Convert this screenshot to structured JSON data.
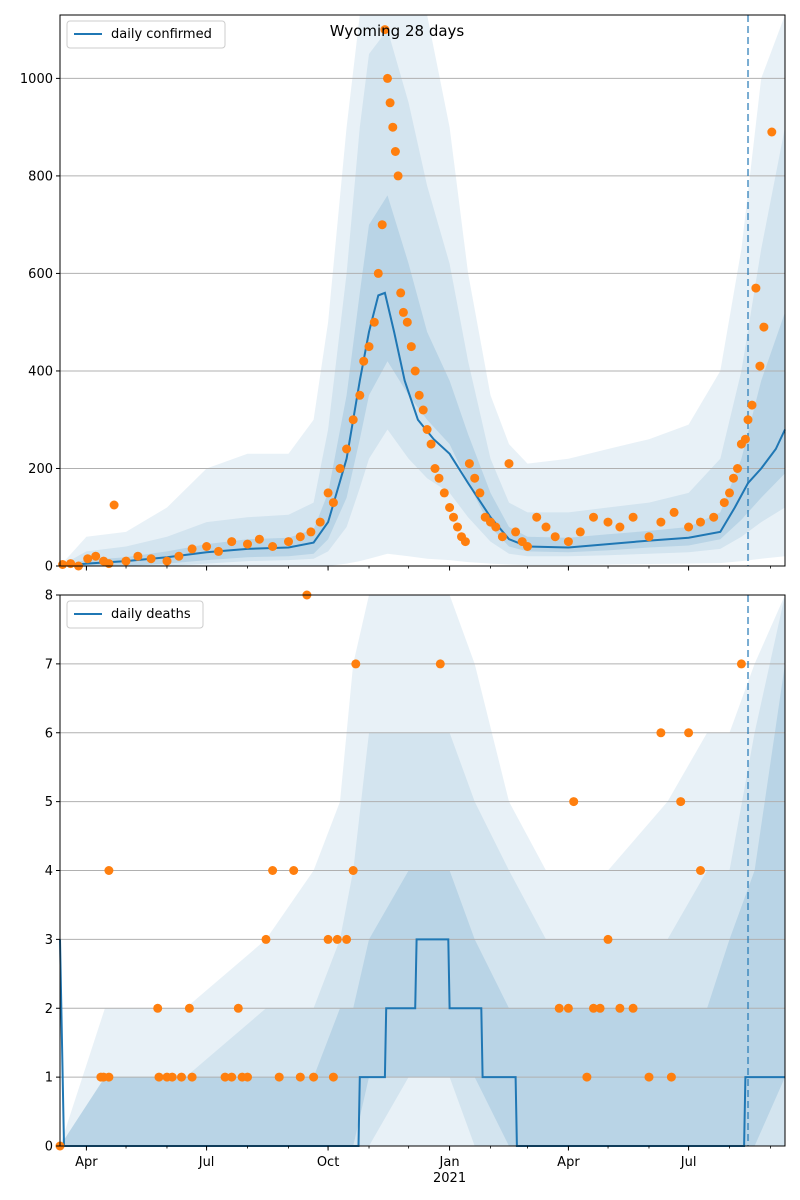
{
  "title": "Wyoming 28 days",
  "colors": {
    "line": "#1f77b4",
    "points": "#ff7f0e",
    "band": "#1f77b4",
    "grid": "#b0b0b0",
    "vline": "#1f77b4"
  },
  "x_axis": {
    "start": "2020-03-12",
    "end": "2021-09-12",
    "ticks": [
      {
        "date": "2020-04-01",
        "label": "Apr"
      },
      {
        "date": "2020-07-01",
        "label": "Jul"
      },
      {
        "date": "2020-10-01",
        "label": "Oct"
      },
      {
        "date": "2021-01-01",
        "label": "Jan"
      },
      {
        "date": "2021-04-01",
        "label": "Apr"
      },
      {
        "date": "2021-07-01",
        "label": "Jul"
      }
    ],
    "year_label": {
      "date": "2021-01-01",
      "label": "2021"
    },
    "forecast_date": "2021-08-15"
  },
  "chart_data": [
    {
      "type": "line",
      "legend": "daily confirmed",
      "legend_position": "top-left",
      "grid": true,
      "ylim": [
        0,
        1130
      ],
      "yticks": [
        0,
        200,
        400,
        600,
        800,
        1000
      ],
      "line": {
        "name": "daily confirmed",
        "x": [
          "2020-03-12",
          "2020-04-01",
          "2020-05-01",
          "2020-06-01",
          "2020-07-01",
          "2020-08-01",
          "2020-09-01",
          "2020-09-20",
          "2020-10-01",
          "2020-10-15",
          "2020-10-25",
          "2020-11-01",
          "2020-11-08",
          "2020-11-13",
          "2020-11-20",
          "2020-11-28",
          "2020-12-08",
          "2020-12-20",
          "2021-01-01",
          "2021-01-15",
          "2021-02-01",
          "2021-02-15",
          "2021-03-01",
          "2021-04-01",
          "2021-05-01",
          "2021-06-01",
          "2021-07-01",
          "2021-07-25",
          "2021-08-05",
          "2021-08-15",
          "2021-08-25",
          "2021-09-05",
          "2021-09-12"
        ],
        "y": [
          0,
          5,
          10,
          18,
          28,
          35,
          38,
          48,
          90,
          220,
          380,
          480,
          555,
          560,
          480,
          380,
          300,
          260,
          230,
          170,
          100,
          55,
          40,
          38,
          45,
          52,
          58,
          70,
          120,
          170,
          200,
          240,
          280
        ]
      },
      "bands": {
        "x": [
          "2020-03-12",
          "2020-04-01",
          "2020-05-01",
          "2020-06-01",
          "2020-07-01",
          "2020-08-01",
          "2020-09-01",
          "2020-09-20",
          "2020-10-01",
          "2020-10-15",
          "2020-10-25",
          "2020-11-01",
          "2020-11-15",
          "2020-12-01",
          "2020-12-15",
          "2021-01-01",
          "2021-01-15",
          "2021-02-01",
          "2021-02-15",
          "2021-03-01",
          "2021-04-01",
          "2021-05-01",
          "2021-06-01",
          "2021-07-01",
          "2021-07-25",
          "2021-08-10",
          "2021-08-25",
          "2021-09-12"
        ],
        "outer_low": [
          0,
          0,
          0,
          0,
          0,
          0,
          0,
          0,
          0,
          5,
          10,
          15,
          25,
          20,
          15,
          12,
          8,
          5,
          3,
          2,
          2,
          3,
          4,
          5,
          6,
          10,
          15,
          20
        ],
        "outer_high": [
          0,
          60,
          70,
          120,
          200,
          230,
          230,
          300,
          500,
          900,
          1130,
          1130,
          1130,
          1130,
          1130,
          900,
          600,
          350,
          250,
          210,
          220,
          240,
          260,
          290,
          400,
          650,
          1000,
          1130
        ],
        "mid_low": [
          0,
          0,
          0,
          0,
          5,
          10,
          12,
          15,
          30,
          80,
          160,
          220,
          280,
          220,
          180,
          150,
          100,
          50,
          25,
          20,
          20,
          22,
          25,
          28,
          35,
          60,
          90,
          120
        ],
        "mid_high": [
          0,
          30,
          40,
          60,
          90,
          100,
          105,
          130,
          280,
          600,
          900,
          1050,
          1100,
          950,
          780,
          620,
          420,
          220,
          130,
          110,
          110,
          120,
          130,
          150,
          220,
          400,
          650,
          900
        ],
        "inner_low": [
          0,
          0,
          0,
          5,
          12,
          18,
          20,
          25,
          55,
          140,
          260,
          350,
          420,
          350,
          300,
          250,
          170,
          80,
          40,
          30,
          28,
          32,
          38,
          42,
          55,
          95,
          140,
          190
        ],
        "inner_high": [
          0,
          12,
          18,
          30,
          45,
          55,
          58,
          75,
          150,
          350,
          560,
          700,
          760,
          620,
          480,
          380,
          270,
          150,
          80,
          60,
          58,
          65,
          72,
          80,
          110,
          220,
          380,
          520
        ]
      },
      "points": {
        "x": [
          "2020-03-14",
          "2020-03-20",
          "2020-03-26",
          "2020-04-02",
          "2020-04-08",
          "2020-04-14",
          "2020-04-18",
          "2020-04-22",
          "2020-05-01",
          "2020-05-10",
          "2020-05-20",
          "2020-06-01",
          "2020-06-10",
          "2020-06-20",
          "2020-07-01",
          "2020-07-10",
          "2020-07-20",
          "2020-08-01",
          "2020-08-10",
          "2020-08-20",
          "2020-09-01",
          "2020-09-10",
          "2020-09-18",
          "2020-09-25",
          "2020-10-01",
          "2020-10-05",
          "2020-10-10",
          "2020-10-15",
          "2020-10-20",
          "2020-10-25",
          "2020-10-28",
          "2020-11-01",
          "2020-11-05",
          "2020-11-08",
          "2020-11-11",
          "2020-11-13",
          "2020-11-15",
          "2020-11-17",
          "2020-11-19",
          "2020-11-21",
          "2020-11-23",
          "2020-11-25",
          "2020-11-27",
          "2020-11-30",
          "2020-12-03",
          "2020-12-06",
          "2020-12-09",
          "2020-12-12",
          "2020-12-15",
          "2020-12-18",
          "2020-12-21",
          "2020-12-24",
          "2020-12-28",
          "2021-01-01",
          "2021-01-04",
          "2021-01-07",
          "2021-01-10",
          "2021-01-13",
          "2021-01-16",
          "2021-01-20",
          "2021-01-24",
          "2021-01-28",
          "2021-02-01",
          "2021-02-05",
          "2021-02-10",
          "2021-02-15",
          "2021-02-20",
          "2021-02-25",
          "2021-03-01",
          "2021-03-08",
          "2021-03-15",
          "2021-03-22",
          "2021-04-01",
          "2021-04-10",
          "2021-04-20",
          "2021-05-01",
          "2021-05-10",
          "2021-05-20",
          "2021-06-01",
          "2021-06-10",
          "2021-06-20",
          "2021-07-01",
          "2021-07-10",
          "2021-07-20",
          "2021-07-28",
          "2021-08-01",
          "2021-08-04",
          "2021-08-07",
          "2021-08-10",
          "2021-08-13",
          "2021-08-15",
          "2021-08-18",
          "2021-08-21",
          "2021-08-24",
          "2021-08-27",
          "2021-09-02"
        ],
        "y": [
          3,
          5,
          0,
          15,
          20,
          10,
          5,
          125,
          10,
          20,
          15,
          10,
          20,
          35,
          40,
          30,
          50,
          45,
          55,
          40,
          50,
          60,
          70,
          90,
          150,
          130,
          200,
          240,
          300,
          350,
          420,
          450,
          500,
          600,
          700,
          1100,
          1000,
          950,
          900,
          850,
          800,
          560,
          520,
          500,
          450,
          400,
          350,
          320,
          280,
          250,
          200,
          180,
          150,
          120,
          100,
          80,
          60,
          50,
          210,
          180,
          150,
          100,
          90,
          80,
          60,
          210,
          70,
          50,
          40,
          100,
          80,
          60,
          50,
          70,
          100,
          90,
          80,
          100,
          60,
          90,
          110,
          80,
          90,
          100,
          130,
          150,
          180,
          200,
          250,
          260,
          300,
          330,
          570,
          410,
          490,
          890
        ]
      }
    },
    {
      "type": "line",
      "legend": "daily deaths",
      "legend_position": "top-left",
      "grid": true,
      "ylim": [
        0,
        8
      ],
      "yticks": [
        0,
        1,
        2,
        3,
        4,
        5,
        6,
        7,
        8
      ],
      "line": {
        "name": "daily deaths",
        "x": [
          "2020-03-12",
          "2020-03-15",
          "2020-10-24",
          "2020-10-25",
          "2020-11-13",
          "2020-11-14",
          "2020-12-06",
          "2020-12-07",
          "2020-12-31",
          "2021-01-01",
          "2021-01-25",
          "2021-01-26",
          "2021-02-20",
          "2021-02-21",
          "2021-08-12",
          "2021-08-13",
          "2021-09-12"
        ],
        "y": [
          3,
          0,
          0,
          1,
          1,
          2,
          2,
          3,
          3,
          2,
          2,
          1,
          1,
          0,
          0,
          1,
          1
        ]
      },
      "bands": {
        "x": [
          "2020-03-12",
          "2020-04-15",
          "2020-06-15",
          "2020-08-15",
          "2020-09-20",
          "2020-10-10",
          "2020-10-20",
          "2020-11-01",
          "2020-12-01",
          "2021-01-01",
          "2021-01-20",
          "2021-02-15",
          "2021-03-15",
          "2021-05-01",
          "2021-06-15",
          "2021-07-15",
          "2021-08-01",
          "2021-08-20",
          "2021-09-12"
        ],
        "outer_low": [
          0,
          0,
          0,
          0,
          0,
          0,
          0,
          0,
          0,
          0,
          0,
          0,
          0,
          0,
          0,
          0,
          0,
          0,
          0
        ],
        "outer_high": [
          0,
          2,
          2,
          3,
          4,
          5,
          7,
          8,
          8,
          8,
          7,
          5,
          4,
          4,
          5,
          6,
          6,
          7,
          8
        ],
        "mid_low": [
          0,
          0,
          0,
          0,
          0,
          0,
          0,
          0,
          1,
          1,
          0,
          0,
          0,
          0,
          0,
          0,
          0,
          0,
          0
        ],
        "mid_high": [
          0,
          1,
          1,
          2,
          2,
          3,
          4,
          6,
          6,
          6,
          5,
          4,
          3,
          3,
          3,
          4,
          4,
          6,
          8
        ],
        "inner_low": [
          0,
          0,
          0,
          0,
          0,
          0,
          0,
          1,
          1,
          1,
          1,
          0,
          0,
          0,
          0,
          0,
          0,
          0,
          1
        ],
        "inner_high": [
          0,
          1,
          1,
          1,
          1,
          2,
          2,
          3,
          4,
          4,
          3,
          2,
          2,
          2,
          2,
          2,
          3,
          4,
          7
        ]
      },
      "points": {
        "x": [
          "2020-03-12",
          "2020-04-12",
          "2020-04-14",
          "2020-04-18",
          "2020-04-18",
          "2020-05-25",
          "2020-05-26",
          "2020-06-01",
          "2020-06-05",
          "2020-06-12",
          "2020-06-18",
          "2020-06-20",
          "2020-07-15",
          "2020-07-20",
          "2020-07-25",
          "2020-07-28",
          "2020-08-01",
          "2020-08-15",
          "2020-08-20",
          "2020-08-25",
          "2020-09-05",
          "2020-09-10",
          "2020-09-15",
          "2020-09-20",
          "2020-10-01",
          "2020-10-05",
          "2020-10-08",
          "2020-10-15",
          "2020-10-20",
          "2020-10-22",
          "2020-12-25",
          "2021-03-25",
          "2021-04-01",
          "2021-04-05",
          "2021-04-15",
          "2021-04-20",
          "2021-04-25",
          "2021-05-01",
          "2021-05-10",
          "2021-05-20",
          "2021-06-01",
          "2021-06-10",
          "2021-06-18",
          "2021-06-25",
          "2021-07-01",
          "2021-07-10",
          "2021-08-10"
        ],
        "y": [
          0,
          1,
          1,
          4,
          1,
          2,
          1,
          1,
          1,
          1,
          2,
          1,
          1,
          1,
          2,
          1,
          1,
          3,
          4,
          1,
          4,
          1,
          8,
          1,
          3,
          1,
          3,
          3,
          4,
          7,
          7,
          2,
          2,
          5,
          1,
          2,
          2,
          3,
          2,
          2,
          1,
          6,
          1,
          5,
          6,
          4,
          7
        ]
      }
    }
  ]
}
